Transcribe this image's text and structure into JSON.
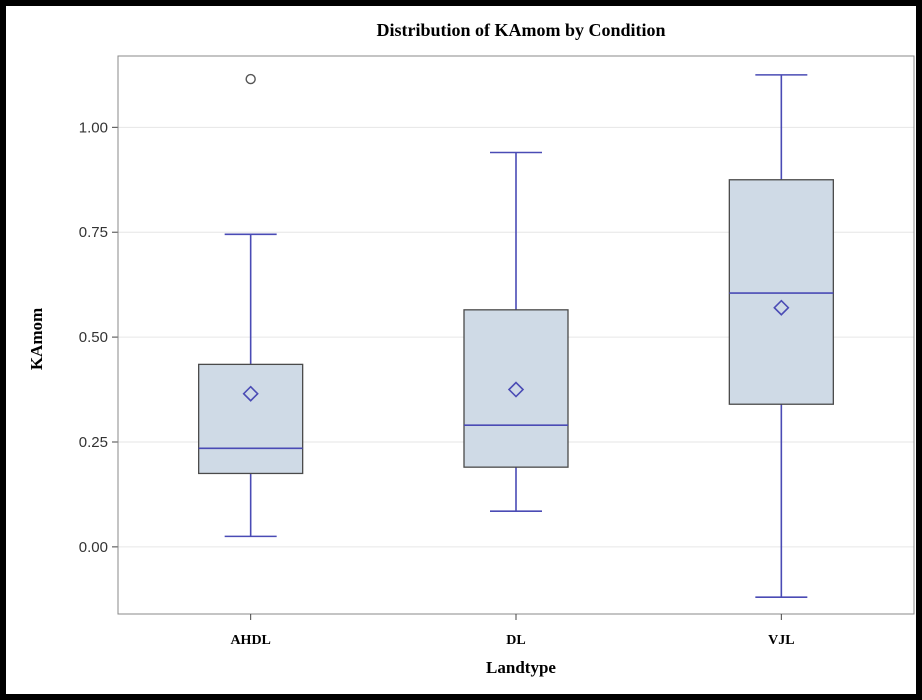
{
  "chart_data": {
    "type": "boxplot",
    "title": "Distribution of KAmom by Condition",
    "xlabel": "Landtype",
    "ylabel": "KAmom",
    "ylim": [
      -0.16,
      1.17
    ],
    "yticks": [
      0.0,
      0.25,
      0.5,
      0.75,
      1.0
    ],
    "ytick_labels": [
      "0.00",
      "0.25",
      "0.50",
      "0.75",
      "1.00"
    ],
    "grid": "horizontal",
    "categories": [
      "AHDL",
      "DL",
      "VJL"
    ],
    "boxes": [
      {
        "category": "AHDL",
        "whisker_low": 0.025,
        "q1": 0.175,
        "median": 0.235,
        "q3": 0.435,
        "whisker_high": 0.745,
        "mean": 0.365,
        "outliers": [
          1.115
        ]
      },
      {
        "category": "DL",
        "whisker_low": 0.085,
        "q1": 0.19,
        "median": 0.29,
        "q3": 0.565,
        "whisker_high": 0.94,
        "mean": 0.375,
        "outliers": []
      },
      {
        "category": "VJL",
        "whisker_low": -0.12,
        "q1": 0.34,
        "median": 0.605,
        "q3": 0.875,
        "whisker_high": 1.125,
        "mean": 0.57,
        "outliers": []
      }
    ],
    "colors": {
      "box_fill": "#cfdae6",
      "box_edge": "#4a4a4a",
      "whisker": "#4a4bb5",
      "median": "#4a4bb5",
      "mean": "#4a4bb5",
      "outlier": "#555555",
      "grid": "#e6e6e6"
    }
  }
}
